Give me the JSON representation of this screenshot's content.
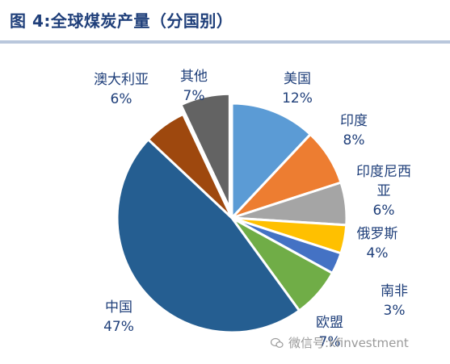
{
  "title": "图 4:全球煤炭产量（分国别）",
  "watermark": "微信号:kfinvestment",
  "chart_data": {
    "type": "pie",
    "title": "图 4:全球煤炭产量（分国别）",
    "start_angle_deg": 0,
    "direction": "clockwise",
    "slices": [
      {
        "name": "美国",
        "value": 12,
        "label": "12%",
        "color": "#5b9bd5"
      },
      {
        "name": "印度",
        "value": 8,
        "label": "8%",
        "color": "#ed7d31"
      },
      {
        "name": "印度尼西亚",
        "value": 6,
        "label": "6%",
        "color": "#a5a5a5"
      },
      {
        "name": "俄罗斯",
        "value": 4,
        "label": "4%",
        "color": "#ffc000"
      },
      {
        "name": "南非",
        "value": 3,
        "label": "3%",
        "color": "#4472c4"
      },
      {
        "name": "欧盟",
        "value": 7,
        "label": "7%",
        "color": "#70ad47"
      },
      {
        "name": "中国",
        "value": 47,
        "label": "47%",
        "color": "#255e91"
      },
      {
        "name": "澳大利亚",
        "value": 6,
        "label": "6%",
        "color": "#9e480e"
      },
      {
        "name": "其他",
        "value": 7,
        "label": "7%",
        "color": "#636363"
      }
    ]
  }
}
